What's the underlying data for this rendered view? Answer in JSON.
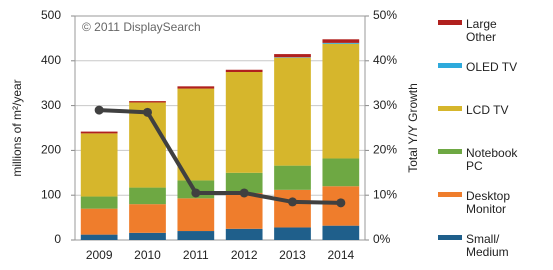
{
  "chart_data": {
    "type": "bar",
    "stacked": true,
    "annotation": "© 2011 DisplaySearch",
    "ylabel": "millions of m²/year",
    "y2label": "Total Y/Y Growth",
    "categories": [
      "2009",
      "2010",
      "2011",
      "2012",
      "2013",
      "2014"
    ],
    "ylim": [
      0,
      500
    ],
    "yticks": [
      0,
      100,
      200,
      300,
      400,
      500
    ],
    "y2lim": [
      0,
      50
    ],
    "y2ticks": [
      {
        "value": 0,
        "label": "0%"
      },
      {
        "value": 10,
        "label": "10%"
      },
      {
        "value": 20,
        "label": "20%"
      },
      {
        "value": 30,
        "label": "30%"
      },
      {
        "value": 40,
        "label": "40%"
      },
      {
        "value": 50,
        "label": "50%"
      }
    ],
    "grid": true,
    "series": [
      {
        "name": "Small/ Medium",
        "color": "#1f5f8b",
        "values": [
          12,
          16,
          20,
          25,
          28,
          32
        ]
      },
      {
        "name": "Desktop Monitor",
        "color": "#ef7d2c",
        "values": [
          58,
          64,
          73,
          80,
          84,
          88
        ]
      },
      {
        "name": "Notebook PC",
        "color": "#6ea843",
        "values": [
          27,
          37,
          40,
          45,
          54,
          62
        ]
      },
      {
        "name": "LCD TV",
        "color": "#d6b62c",
        "values": [
          141,
          190,
          205,
          225,
          241,
          256
        ]
      },
      {
        "name": "OLED TV",
        "color": "#2eaadc",
        "values": [
          0,
          0,
          0,
          0,
          1,
          2
        ]
      },
      {
        "name": "Large Other",
        "color": "#b0201e",
        "values": [
          4,
          3,
          5,
          5,
          7,
          8
        ]
      },
      {
        "type": "line",
        "axis": "y2",
        "color": "#404040",
        "values": [
          29,
          28.5,
          10.5,
          10.5,
          8.5,
          8.3
        ]
      }
    ]
  }
}
